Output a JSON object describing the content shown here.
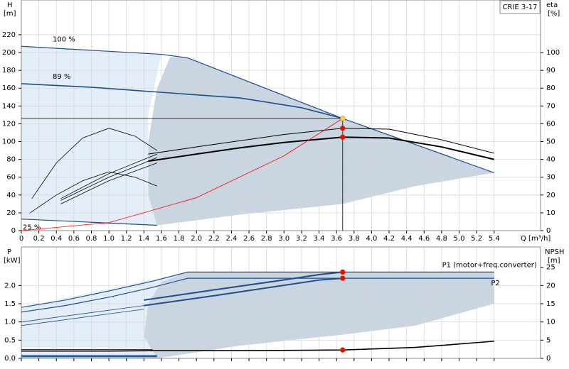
{
  "chart_data": [
    {
      "type": "line",
      "title": "CRIE 3-17",
      "xlabel": "Q [m³/h]",
      "ylabel": "H",
      "yunit": "[m]",
      "y2label": "eta",
      "y2unit": "[%]",
      "xlim": [
        0,
        5.93
      ],
      "ylim": [
        0,
        259
      ],
      "y2lim": [
        0,
        129.5
      ],
      "grid": true,
      "xticks": [
        0,
        0.2,
        0.4,
        0.6,
        0.8,
        {
          "value": 1,
          "label": "1.0"
        },
        1.2,
        1.4,
        1.6,
        1.8,
        {
          "value": 2,
          "label": "2.0"
        },
        2.2,
        2.4,
        2.6,
        2.8,
        {
          "value": 3,
          "label": "3.0"
        },
        3.2,
        3.4,
        3.6,
        3.8,
        {
          "value": 4,
          "label": "4.0"
        },
        4.2,
        4.4,
        4.6,
        4.8,
        {
          "value": 5,
          "label": "5.0"
        },
        5.2,
        5.4
      ],
      "yticks": [
        0,
        20,
        40,
        60,
        80,
        100,
        120,
        140,
        160,
        180,
        200,
        220
      ],
      "y2ticks": [
        0,
        10,
        20,
        30,
        40,
        50,
        60,
        70,
        80,
        90,
        100
      ],
      "areas": [
        {
          "color": "#e4eef8",
          "x": [
            0,
            0,
            1.6,
            1.45,
            1.45,
            1.55
          ],
          "values": [
            13,
            207,
            198,
            130,
            60,
            6
          ]
        },
        {
          "color": "#c9d5e0",
          "x": [
            1.55,
            1.45,
            1.45,
            1.55,
            1.7,
            1.9,
            3.67,
            5.4,
            4.5,
            3.67,
            2.5,
            1.55
          ],
          "values": [
            6,
            40,
            100,
            160,
            195,
            194,
            126,
            65,
            50,
            30,
            18,
            6
          ]
        }
      ],
      "series": [
        {
          "name": "100 %",
          "color": "#1f4e8c",
          "width": 1.2,
          "x": [
            0,
            1.6,
            1.9,
            3.67,
            5.4
          ],
          "values": [
            207,
            198,
            194,
            126,
            65
          ]
        },
        {
          "name": "89 %",
          "color": "#1f4e8c",
          "width": 1.6,
          "x": [
            0,
            0.8,
            1.5,
            2.5,
            3.2,
            3.67
          ],
          "values": [
            165,
            161,
            156,
            149,
            138,
            126
          ]
        },
        {
          "name": "25 %",
          "color": "#1f4e8c",
          "width": 1.2,
          "x": [
            0,
            1.55
          ],
          "values": [
            13,
            6
          ]
        },
        {
          "color": "#000000",
          "width": 2,
          "axis": "y2",
          "x": [
            1.45,
            2,
            2.5,
            3,
            3.67,
            4.2,
            4.8,
            5.4
          ],
          "values": [
            39,
            43,
            46.5,
            49.5,
            52.5,
            52,
            47,
            40
          ]
        },
        {
          "color": "#000000",
          "width": 1,
          "axis": "y2",
          "x": [
            1.45,
            2,
            2.5,
            3,
            3.67,
            4.2,
            4.8,
            5.4
          ],
          "values": [
            43,
            47,
            50.5,
            54,
            57.5,
            57,
            51,
            43.5
          ]
        },
        {
          "color": "#000000",
          "width": 0.8,
          "axis": "y2",
          "x": [
            0.12,
            0.4,
            0.7,
            1,
            1.3,
            1.55
          ],
          "values": [
            18,
            38,
            52,
            57.5,
            53,
            45
          ]
        },
        {
          "color": "#000000",
          "width": 0.8,
          "axis": "y2",
          "x": [
            0.1,
            0.4,
            0.7,
            1,
            1.3,
            1.55
          ],
          "values": [
            10,
            20,
            28,
            33,
            30,
            25
          ]
        },
        {
          "color": "#000000",
          "width": 0.8,
          "axis": "y2",
          "x": [
            0.45,
            1,
            1.55
          ],
          "values": [
            15,
            28,
            38
          ]
        },
        {
          "color": "#000000",
          "width": 0.8,
          "axis": "y2",
          "x": [
            0.45,
            1,
            1.55
          ],
          "values": [
            17,
            30,
            41
          ]
        },
        {
          "color": "#000000",
          "width": 0.8,
          "axis": "y2",
          "x": [
            0.45,
            1,
            1.55
          ],
          "values": [
            18,
            32,
            43
          ]
        },
        {
          "color": "#ff0000",
          "width": 0.8,
          "x": [
            0,
            1,
            2,
            3,
            3.67
          ],
          "values": [
            0,
            9,
            37,
            84,
            126
          ]
        },
        {
          "color": "#000000",
          "width": 0.8,
          "x": [
            0,
            3.67
          ],
          "values": [
            126,
            126
          ]
        },
        {
          "color": "#000000",
          "width": 0.8,
          "x": [
            3.67,
            3.67
          ],
          "values": [
            126,
            0
          ]
        }
      ],
      "points": [
        {
          "color": "#ffd23f",
          "x": 3.67,
          "value": 126
        },
        {
          "color": "#ff0000",
          "axis": "y2",
          "x": 3.67,
          "value": 57.5
        },
        {
          "color": "#ff0000",
          "axis": "y2",
          "x": 3.67,
          "value": 52.5
        }
      ]
    },
    {
      "type": "line",
      "ylabel": "P",
      "yunit": "[kW]",
      "y2label": "NPSH",
      "y2unit": "[m]",
      "xlim": [
        0,
        5.93
      ],
      "ylim": [
        0,
        3.06
      ],
      "y2lim": [
        0,
        30.6
      ],
      "grid": true,
      "yticks": [
        {
          "value": 0,
          "label": "0.0"
        },
        0.5,
        {
          "value": 1,
          "label": "1.0"
        },
        1.5,
        {
          "value": 2,
          "label": "2.0"
        }
      ],
      "y2ticks": [
        0,
        5,
        10,
        15,
        20,
        25
      ],
      "areas": [
        {
          "color": "#e4eef8",
          "x": [
            0,
            0,
            1.9,
            1.45,
            1.4,
            1.55
          ],
          "values": [
            0,
            1.4,
            2.37,
            1.5,
            0.6,
            0
          ]
        },
        {
          "color": "#c9d5e0",
          "x": [
            1.55,
            1.4,
            1.45,
            1.6,
            1.9,
            5.4,
            5.4,
            4.5,
            3.67,
            2.5,
            1.55
          ],
          "values": [
            0,
            0.6,
            1.5,
            2.1,
            2.37,
            2.37,
            1.5,
            0.9,
            0.65,
            0.35,
            0
          ]
        }
      ],
      "series": [
        {
          "name": "P1 (motor+freq.converter)",
          "color": "#1f4e8c",
          "width": 1.2,
          "x": [
            0,
            0.5,
            1,
            1.5,
            1.9,
            3.67,
            5.4
          ],
          "values": [
            1.4,
            1.6,
            1.85,
            2.12,
            2.37,
            2.37,
            2.37
          ]
        },
        {
          "name": "P2",
          "color": "#1f4e8c",
          "width": 1.2,
          "x": [
            0,
            0.5,
            1,
            1.5,
            1.9,
            5.4
          ],
          "values": [
            1.27,
            1.45,
            1.68,
            1.95,
            2.2,
            2.2
          ]
        },
        {
          "color": "#1f4e8c",
          "width": 2,
          "x": [
            1.4,
            2.2,
            2.9,
            3.4,
            3.67
          ],
          "values": [
            1.6,
            1.88,
            2.12,
            2.3,
            2.37
          ]
        },
        {
          "color": "#1f4e8c",
          "width": 2,
          "x": [
            1.4,
            2.2,
            2.9,
            3.4,
            3.67
          ],
          "values": [
            1.45,
            1.72,
            1.97,
            2.15,
            2.2
          ]
        },
        {
          "color": "#1f4e8c",
          "width": 0.8,
          "x": [
            0,
            1.4
          ],
          "values": [
            1,
            1.45
          ]
        },
        {
          "color": "#1f4e8c",
          "width": 0.8,
          "x": [
            0,
            1.4
          ],
          "values": [
            0.9,
            1.35
          ]
        },
        {
          "color": "#1f4e8c",
          "width": 2,
          "x": [
            0,
            1.55
          ],
          "values": [
            0.05,
            0.05
          ]
        },
        {
          "color": "#1f4e8c",
          "width": 0.8,
          "x": [
            0,
            1.55
          ],
          "values": [
            0.09,
            0.09
          ]
        },
        {
          "color": "#000000",
          "width": 1.6,
          "axis": "y2",
          "x": [
            0,
            1,
            1.5,
            2.5,
            3.67,
            4.5,
            5.4
          ],
          "values": [
            2,
            2,
            2.1,
            2.1,
            2.3,
            3,
            4.7
          ]
        },
        {
          "color": "#000000",
          "width": 0.8,
          "axis": "y2",
          "x": [
            0,
            1.5
          ],
          "values": [
            2.4,
            2.4
          ]
        }
      ],
      "points": [
        {
          "color": "#ff0000",
          "x": 3.67,
          "value": 2.37
        },
        {
          "color": "#ff0000",
          "x": 3.67,
          "value": 2.2
        },
        {
          "color": "#ff0000",
          "axis": "y2",
          "x": 3.67,
          "value": 2.3
        }
      ]
    }
  ]
}
